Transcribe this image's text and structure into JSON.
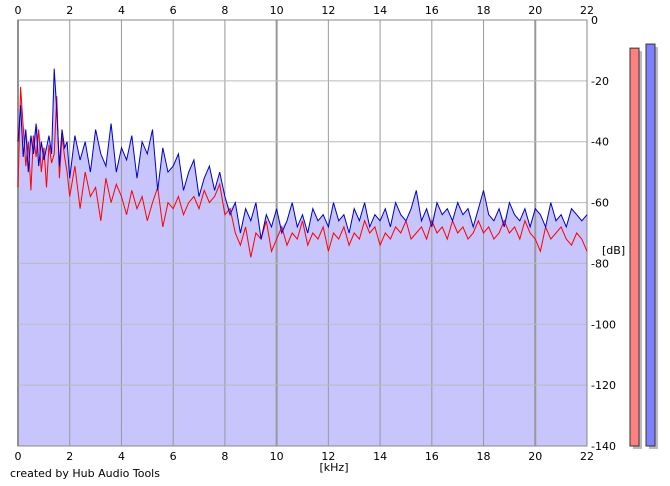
{
  "chart_data": {
    "type": "area",
    "xlabel": "[kHz]",
    "ylabel": "[dB]",
    "xlim": [
      0,
      22
    ],
    "ylim": [
      -140,
      0
    ],
    "x_ticks": [
      0,
      2,
      4,
      6,
      8,
      10,
      12,
      14,
      16,
      18,
      20,
      22
    ],
    "y_ticks": [
      0,
      -20,
      -40,
      -60,
      -80,
      -100,
      -120,
      -140
    ],
    "grid": true,
    "fill_color": "#c8c4fc",
    "series": [
      {
        "color": "#ff0000",
        "x": [
          0.0,
          0.1,
          0.2,
          0.3,
          0.4,
          0.5,
          0.6,
          0.7,
          0.8,
          0.9,
          1.0,
          1.1,
          1.2,
          1.3,
          1.4,
          1.5,
          1.6,
          1.7,
          1.8,
          1.9,
          2.0,
          2.2,
          2.4,
          2.6,
          2.8,
          3.0,
          3.2,
          3.4,
          3.6,
          3.8,
          4.0,
          4.2,
          4.4,
          4.6,
          4.8,
          5.0,
          5.2,
          5.4,
          5.6,
          5.8,
          6.0,
          6.2,
          6.4,
          6.6,
          6.8,
          7.0,
          7.2,
          7.4,
          7.6,
          7.8,
          8.0,
          8.2,
          8.4,
          8.6,
          8.8,
          9.0,
          9.2,
          9.4,
          9.6,
          9.8,
          10.0,
          10.2,
          10.4,
          10.6,
          10.8,
          11.0,
          11.2,
          11.4,
          11.6,
          11.8,
          12.0,
          12.2,
          12.4,
          12.6,
          12.8,
          13.0,
          13.2,
          13.4,
          13.6,
          13.8,
          14.0,
          14.2,
          14.4,
          14.6,
          14.8,
          15.0,
          15.2,
          15.4,
          15.6,
          15.8,
          16.0,
          16.2,
          16.4,
          16.6,
          16.8,
          17.0,
          17.2,
          17.4,
          17.6,
          17.8,
          18.0,
          18.2,
          18.4,
          18.6,
          18.8,
          19.0,
          19.2,
          19.4,
          19.6,
          19.8,
          20.0,
          20.2,
          20.4,
          20.6,
          20.8,
          21.0,
          21.2,
          21.4,
          21.6,
          21.8,
          22.0
        ],
        "values": [
          -55,
          -22,
          -35,
          -48,
          -40,
          -56,
          -38,
          -45,
          -36,
          -50,
          -42,
          -55,
          -41,
          -47,
          -44,
          -25,
          -52,
          -38,
          -45,
          -50,
          -58,
          -48,
          -62,
          -50,
          -58,
          -55,
          -66,
          -52,
          -60,
          -54,
          -58,
          -64,
          -56,
          -62,
          -58,
          -66,
          -60,
          -55,
          -68,
          -60,
          -62,
          -58,
          -64,
          -60,
          -58,
          -62,
          -56,
          -60,
          -58,
          -54,
          -64,
          -62,
          -70,
          -74,
          -68,
          -78,
          -70,
          -72,
          -66,
          -76,
          -72,
          -68,
          -74,
          -70,
          -72,
          -66,
          -74,
          -70,
          -72,
          -68,
          -76,
          -70,
          -72,
          -68,
          -74,
          -70,
          -72,
          -66,
          -70,
          -68,
          -74,
          -70,
          -72,
          -68,
          -70,
          -66,
          -72,
          -70,
          -68,
          -72,
          -66,
          -70,
          -68,
          -72,
          -66,
          -70,
          -68,
          -72,
          -70,
          -66,
          -70,
          -68,
          -72,
          -70,
          -66,
          -70,
          -68,
          -72,
          -66,
          -70,
          -72,
          -76,
          -68,
          -72,
          -70,
          -68,
          -72,
          -74,
          -70,
          -72,
          -76
        ]
      },
      {
        "color": "#0000cc",
        "x": [
          0.0,
          0.1,
          0.2,
          0.3,
          0.4,
          0.5,
          0.6,
          0.7,
          0.8,
          0.9,
          1.0,
          1.1,
          1.2,
          1.3,
          1.4,
          1.5,
          1.6,
          1.7,
          1.8,
          1.9,
          2.0,
          2.2,
          2.4,
          2.6,
          2.8,
          3.0,
          3.2,
          3.4,
          3.6,
          3.8,
          4.0,
          4.2,
          4.4,
          4.6,
          4.8,
          5.0,
          5.2,
          5.4,
          5.6,
          5.8,
          6.0,
          6.2,
          6.4,
          6.6,
          6.8,
          7.0,
          7.2,
          7.4,
          7.6,
          7.8,
          8.0,
          8.2,
          8.4,
          8.6,
          8.8,
          9.0,
          9.2,
          9.4,
          9.6,
          9.8,
          10.0,
          10.2,
          10.4,
          10.6,
          10.8,
          11.0,
          11.2,
          11.4,
          11.6,
          11.8,
          12.0,
          12.2,
          12.4,
          12.6,
          12.8,
          13.0,
          13.2,
          13.4,
          13.6,
          13.8,
          14.0,
          14.2,
          14.4,
          14.6,
          14.8,
          15.0,
          15.2,
          15.4,
          15.6,
          15.8,
          16.0,
          16.2,
          16.4,
          16.6,
          16.8,
          17.0,
          17.2,
          17.4,
          17.6,
          17.8,
          18.0,
          18.2,
          18.4,
          18.6,
          18.8,
          19.0,
          19.2,
          19.4,
          19.6,
          19.8,
          20.0,
          20.2,
          20.4,
          20.6,
          20.8,
          21.0,
          21.2,
          21.4,
          21.6,
          21.8,
          22.0
        ],
        "values": [
          -40,
          -28,
          -45,
          -36,
          -50,
          -38,
          -44,
          -34,
          -48,
          -40,
          -46,
          -42,
          -38,
          -44,
          -16,
          -30,
          -48,
          -36,
          -42,
          -40,
          -52,
          -38,
          -46,
          -40,
          -50,
          -36,
          -44,
          -48,
          -34,
          -50,
          -42,
          -46,
          -38,
          -52,
          -40,
          -44,
          -36,
          -56,
          -42,
          -50,
          -48,
          -44,
          -56,
          -50,
          -46,
          -58,
          -52,
          -48,
          -56,
          -50,
          -58,
          -64,
          -60,
          -70,
          -62,
          -66,
          -60,
          -72,
          -64,
          -68,
          -62,
          -70,
          -66,
          -60,
          -68,
          -64,
          -70,
          -62,
          -66,
          -64,
          -68,
          -60,
          -66,
          -64,
          -70,
          -62,
          -66,
          -60,
          -68,
          -64,
          -66,
          -62,
          -68,
          -60,
          -64,
          -66,
          -62,
          -56,
          -66,
          -62,
          -68,
          -60,
          -64,
          -62,
          -66,
          -60,
          -64,
          -62,
          -68,
          -62,
          -56,
          -64,
          -66,
          -62,
          -68,
          -60,
          -64,
          -66,
          -62,
          -68,
          -62,
          -64,
          -68,
          -60,
          -66,
          -64,
          -68,
          -62,
          -64,
          -66,
          -64
        ]
      }
    ]
  },
  "axes": {
    "x_label": "[kHz]",
    "y_label": "[dB]",
    "x_ticks_top": [
      "0",
      "2",
      "4",
      "6",
      "8",
      "10",
      "12",
      "14",
      "16",
      "18",
      "20",
      "22"
    ],
    "x_ticks_bottom": [
      "0",
      "2",
      "4",
      "6",
      "8",
      "10",
      "12",
      "14",
      "16",
      "18",
      "20",
      "22"
    ],
    "y_ticks": [
      "0",
      "-20",
      "-40",
      "-60",
      "-80",
      "-100",
      "-120",
      "-140"
    ]
  },
  "meters": [
    {
      "channel_color": "#ff8080",
      "level": 0.98
    },
    {
      "channel_color": "#8080ff",
      "level": 0.99
    }
  ],
  "footer": {
    "credit": "created by Hub Audio Tools"
  }
}
